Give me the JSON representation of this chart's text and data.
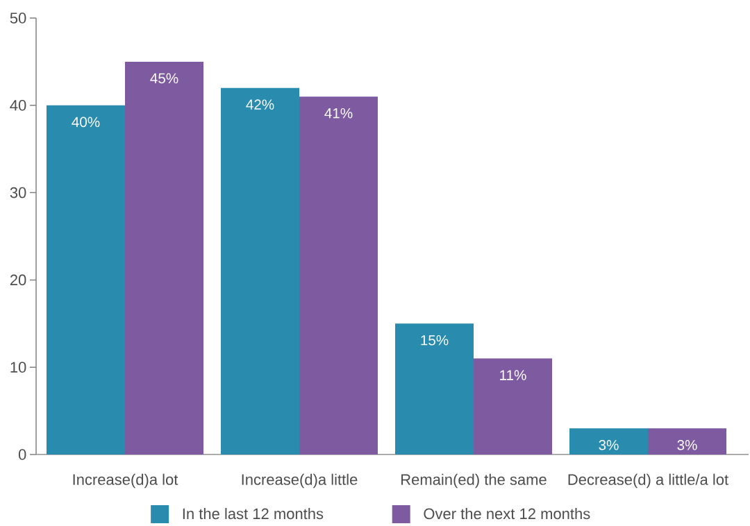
{
  "chart_data": {
    "type": "bar",
    "categories": [
      "Increase(d)a lot",
      "Increase(d)a little",
      "Remain(ed) the same",
      "Decrease(d) a little/a lot"
    ],
    "series": [
      {
        "name": "In the last 12 months",
        "color": "#298bae",
        "values": [
          40,
          42,
          15,
          3
        ],
        "value_labels": [
          "40%",
          "42%",
          "15%",
          "3%"
        ]
      },
      {
        "name": "Over the next 12 months",
        "color": "#7e5ba0",
        "values": [
          45,
          41,
          11,
          3
        ],
        "value_labels": [
          "45%",
          "41%",
          "11%",
          "3%"
        ]
      }
    ],
    "ylim": [
      0,
      50
    ],
    "yticks": [
      0,
      10,
      20,
      30,
      40,
      50
    ],
    "legend": "bottom"
  }
}
